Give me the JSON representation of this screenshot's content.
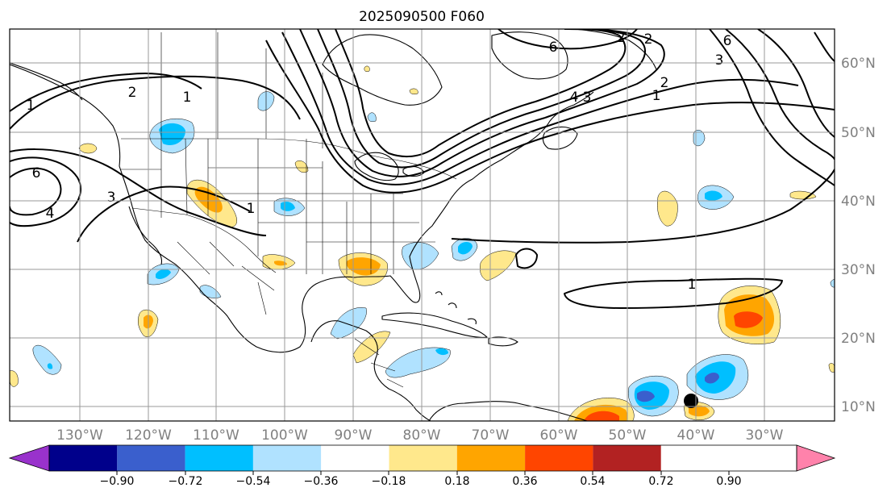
{
  "map": {
    "title": "2025090500 F060",
    "lon_labels": [
      "130°W",
      "120°W",
      "110°W",
      "100°W",
      "90°W",
      "80°W",
      "70°W",
      "60°W",
      "50°W",
      "40°W",
      "30°W"
    ],
    "lat_labels": [
      "60°N",
      "50°N",
      "40°N",
      "30°N",
      "20°N",
      "10°N"
    ],
    "contour_labels": [
      "1",
      "2",
      "1",
      "6",
      "3",
      "4",
      "1",
      "2",
      "6",
      "2",
      "3",
      "4",
      "1",
      "2",
      "3",
      "6",
      "1"
    ],
    "colorbar": {
      "tick_labels": [
        "−0.90",
        "−0.72",
        "−0.54",
        "−0.36",
        "−0.18",
        "0.18",
        "0.36",
        "0.54",
        "0.72",
        "0.90"
      ],
      "colors": [
        "#9932cc",
        "#00008b",
        "#3a5fcd",
        "#00bfff",
        "#b0e2ff",
        "#ffffff",
        "#ffe88c",
        "#ffa500",
        "#ff4500",
        "#b22222",
        "#ff82ab"
      ]
    }
  }
}
